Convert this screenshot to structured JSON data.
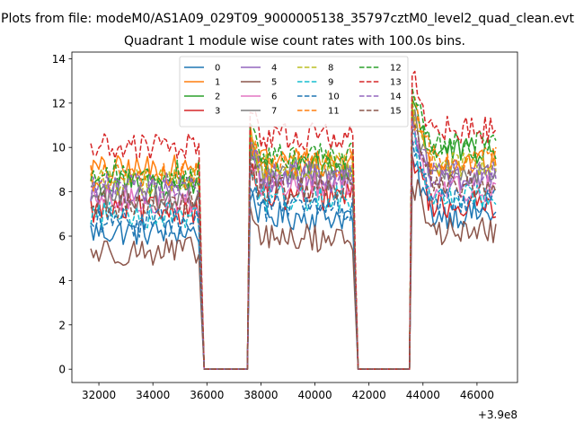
{
  "figure": {
    "suptitle": "Plots from file: modeM0/AS1A09_029T09_9000005138_35797cztM0_level2_quad_clean.evt"
  },
  "chart_data": {
    "type": "line",
    "title": "Quadrant 1 module wise count rates with 100.0s bins.",
    "xlabel": "",
    "ylabel": "",
    "x_offset_label": "+3.9e8",
    "x_offset": 390000000,
    "xlim": [
      390031000,
      390047500
    ],
    "ylim": [
      -0.6,
      14.3
    ],
    "x_ticks": [
      390032000,
      390034000,
      390036000,
      390038000,
      390040000,
      390042000,
      390044000,
      390046000
    ],
    "x_tick_labels": [
      "32000",
      "34000",
      "36000",
      "38000",
      "40000",
      "42000",
      "44000",
      "46000"
    ],
    "y_ticks": [
      0,
      2,
      4,
      6,
      8,
      10,
      12,
      14
    ],
    "y_tick_labels": [
      "0",
      "2",
      "4",
      "6",
      "8",
      "10",
      "12",
      "14"
    ],
    "grid": false,
    "legend_position": "top-center",
    "legend_columns": 4,
    "segments_note": "Three observing segments separated by zero-count gaps",
    "segments": [
      {
        "start": 390031700,
        "end": 390035800
      },
      {
        "start": 390037600,
        "end": 390041500
      },
      {
        "start": 390043600,
        "end": 390046700
      }
    ],
    "gaps": [
      {
        "start": 390035800,
        "end": 390037600
      },
      {
        "start": 390041500,
        "end": 390043600
      }
    ],
    "x_step": 100,
    "series": [
      {
        "name": "0",
        "color": "#1f77b4",
        "dash": "solid",
        "levels": [
          6.2,
          6.9,
          7.0
        ]
      },
      {
        "name": "1",
        "color": "#ff7f0e",
        "dash": "solid",
        "levels": [
          9.0,
          9.4,
          9.3
        ]
      },
      {
        "name": "2",
        "color": "#2ca02c",
        "dash": "solid",
        "levels": [
          8.3,
          9.0,
          9.8
        ]
      },
      {
        "name": "3",
        "color": "#d62728",
        "dash": "solid",
        "levels": [
          7.2,
          7.8,
          7.4
        ]
      },
      {
        "name": "4",
        "color": "#9467bd",
        "dash": "solid",
        "levels": [
          8.0,
          8.6,
          8.5
        ]
      },
      {
        "name": "5",
        "color": "#8c564b",
        "dash": "solid",
        "levels": [
          5.3,
          5.9,
          6.2
        ]
      },
      {
        "name": "6",
        "color": "#e377c2",
        "dash": "solid",
        "levels": [
          7.6,
          8.3,
          8.2
        ]
      },
      {
        "name": "7",
        "color": "#7f7f7f",
        "dash": "solid",
        "levels": [
          7.8,
          8.7,
          9.0
        ]
      },
      {
        "name": "8",
        "color": "#bcbd22",
        "dash": "dashed",
        "levels": [
          8.5,
          9.1,
          9.2
        ]
      },
      {
        "name": "9",
        "color": "#17becf",
        "dash": "dashed",
        "levels": [
          7.0,
          7.7,
          7.9
        ]
      },
      {
        "name": "10",
        "color": "#1f77b4",
        "dash": "dashed",
        "levels": [
          6.6,
          7.3,
          7.6
        ]
      },
      {
        "name": "11",
        "color": "#ff7f0e",
        "dash": "dashed",
        "levels": [
          8.7,
          9.3,
          9.6
        ]
      },
      {
        "name": "12",
        "color": "#2ca02c",
        "dash": "dashed",
        "levels": [
          8.8,
          9.6,
          10.1
        ]
      },
      {
        "name": "13",
        "color": "#d62728",
        "dash": "dashed",
        "levels": [
          10.0,
          10.5,
          10.8
        ]
      },
      {
        "name": "14",
        "color": "#9467bd",
        "dash": "dashed",
        "levels": [
          8.2,
          8.8,
          8.8
        ]
      },
      {
        "name": "15",
        "color": "#8c564b",
        "dash": "dashed",
        "levels": [
          7.4,
          8.1,
          8.4
        ]
      }
    ]
  }
}
